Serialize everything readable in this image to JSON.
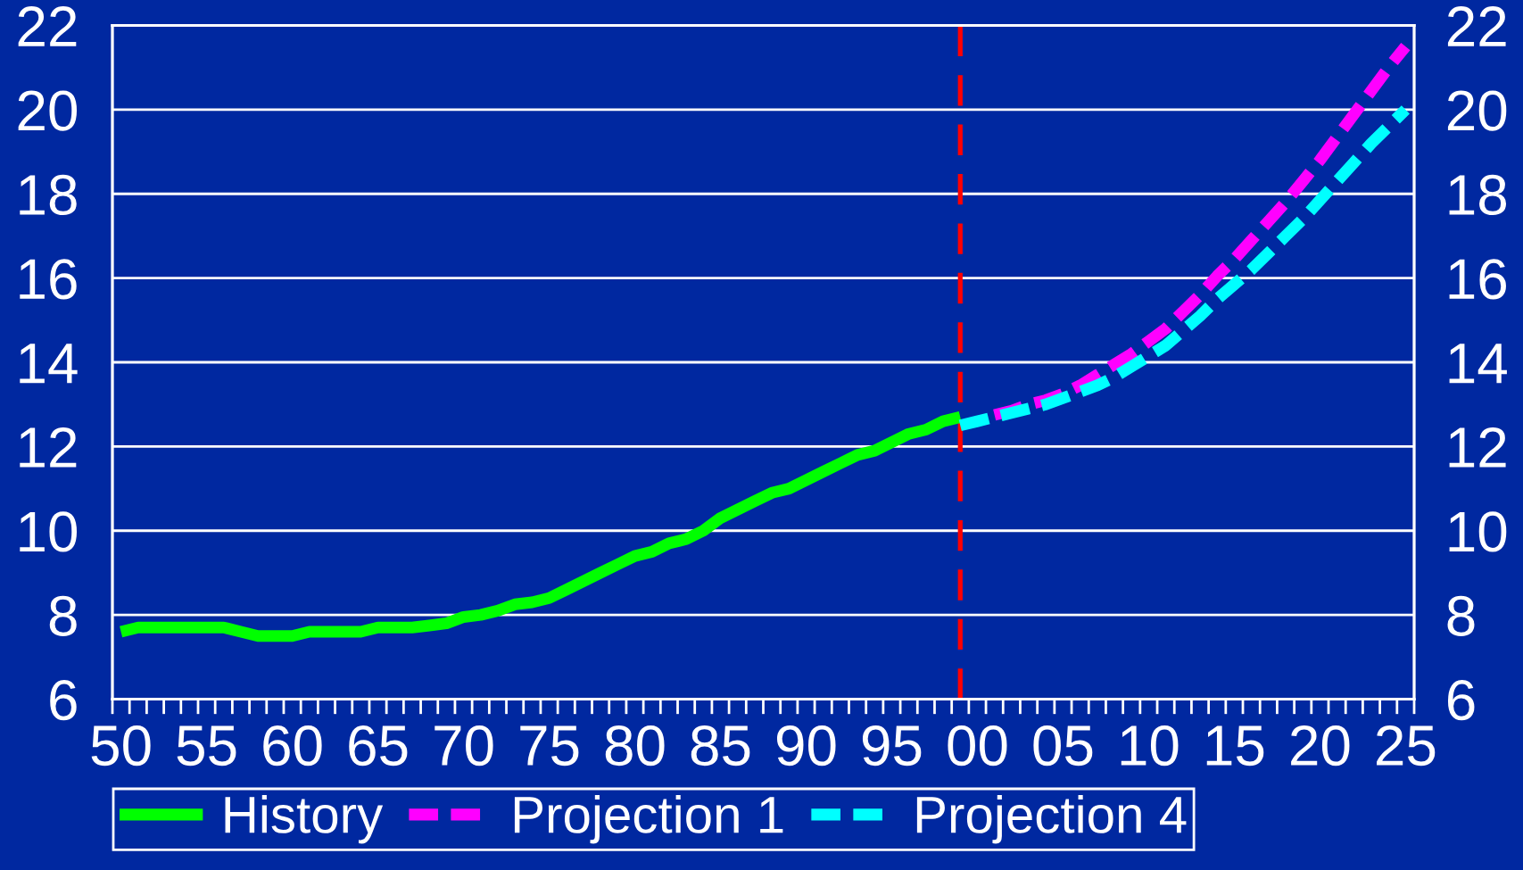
{
  "chart_data": {
    "type": "line",
    "xlim": [
      1949.5,
      2025.5
    ],
    "xticks": [
      {
        "value": 1950,
        "label": "50"
      },
      {
        "value": 1955,
        "label": "55"
      },
      {
        "value": 1960,
        "label": "60"
      },
      {
        "value": 1965,
        "label": "65"
      },
      {
        "value": 1970,
        "label": "70"
      },
      {
        "value": 1975,
        "label": "75"
      },
      {
        "value": 1980,
        "label": "80"
      },
      {
        "value": 1985,
        "label": "85"
      },
      {
        "value": 1990,
        "label": "90"
      },
      {
        "value": 1995,
        "label": "95"
      },
      {
        "value": 2000,
        "label": "00"
      },
      {
        "value": 2005,
        "label": "05"
      },
      {
        "value": 2010,
        "label": "10"
      },
      {
        "value": 2015,
        "label": "15"
      },
      {
        "value": 2020,
        "label": "20"
      },
      {
        "value": 2025,
        "label": "25"
      }
    ],
    "ylim": [
      6,
      22
    ],
    "yticks": [
      6,
      8,
      10,
      12,
      14,
      16,
      18,
      20,
      22
    ],
    "y2lim": [
      6,
      22
    ],
    "y2ticks": [
      6,
      8,
      10,
      12,
      14,
      16,
      18,
      20,
      22
    ],
    "grid": "y",
    "legend": "bottom",
    "ref_lines": [
      {
        "axis": "x",
        "value": 1999,
        "color": "#ff0000",
        "line_style": "dashed"
      }
    ],
    "series": [
      {
        "name": "History",
        "color": "#00ff00",
        "line_style": "solid",
        "x": [
          1950,
          1951,
          1952,
          1953,
          1954,
          1955,
          1956,
          1957,
          1958,
          1959,
          1960,
          1961,
          1962,
          1963,
          1964,
          1965,
          1966,
          1967,
          1968,
          1969,
          1970,
          1971,
          1972,
          1973,
          1974,
          1975,
          1976,
          1977,
          1978,
          1979,
          1980,
          1981,
          1982,
          1983,
          1984,
          1985,
          1986,
          1987,
          1988,
          1989,
          1990,
          1991,
          1992,
          1993,
          1994,
          1995,
          1996,
          1997,
          1998,
          1999
        ],
        "values": [
          7.6,
          7.7,
          7.7,
          7.7,
          7.7,
          7.7,
          7.7,
          7.6,
          7.5,
          7.5,
          7.5,
          7.6,
          7.6,
          7.6,
          7.6,
          7.7,
          7.7,
          7.7,
          7.75,
          7.8,
          7.95,
          8.0,
          8.1,
          8.25,
          8.3,
          8.4,
          8.6,
          8.8,
          9.0,
          9.2,
          9.4,
          9.5,
          9.7,
          9.8,
          10.0,
          10.3,
          10.5,
          10.7,
          10.9,
          11.0,
          11.2,
          11.4,
          11.6,
          11.8,
          11.9,
          12.1,
          12.3,
          12.4,
          12.6,
          12.7
        ]
      },
      {
        "name": "Projection 1",
        "color": "#ff00ff",
        "line_style": "dashed",
        "x": [
          2001,
          2002,
          2003,
          2004,
          2005,
          2006,
          2007,
          2008,
          2009,
          2010,
          2011,
          2012,
          2013,
          2014,
          2015,
          2016,
          2017,
          2018,
          2019,
          2020,
          2021,
          2022,
          2023,
          2024,
          2025
        ],
        "values": [
          12.75,
          12.85,
          13.0,
          13.1,
          13.25,
          13.45,
          13.7,
          13.95,
          14.2,
          14.5,
          14.8,
          15.2,
          15.6,
          16.05,
          16.45,
          16.9,
          17.35,
          17.8,
          18.3,
          18.8,
          19.35,
          19.9,
          20.45,
          21.0,
          21.5
        ]
      },
      {
        "name": "Projection 4",
        "color": "#00ffff",
        "line_style": "dashed",
        "x": [
          1999,
          2000,
          2001,
          2002,
          2003,
          2004,
          2005,
          2006,
          2007,
          2008,
          2009,
          2010,
          2011,
          2012,
          2013,
          2014,
          2015,
          2016,
          2017,
          2018,
          2019,
          2020,
          2021,
          2022,
          2023,
          2024,
          2025
        ],
        "values": [
          12.5,
          12.6,
          12.7,
          12.8,
          12.9,
          13.0,
          13.15,
          13.3,
          13.45,
          13.65,
          13.9,
          14.15,
          14.4,
          14.75,
          15.1,
          15.5,
          15.85,
          16.2,
          16.6,
          17.0,
          17.4,
          17.85,
          18.3,
          18.75,
          19.2,
          19.6,
          20.0
        ]
      }
    ]
  }
}
